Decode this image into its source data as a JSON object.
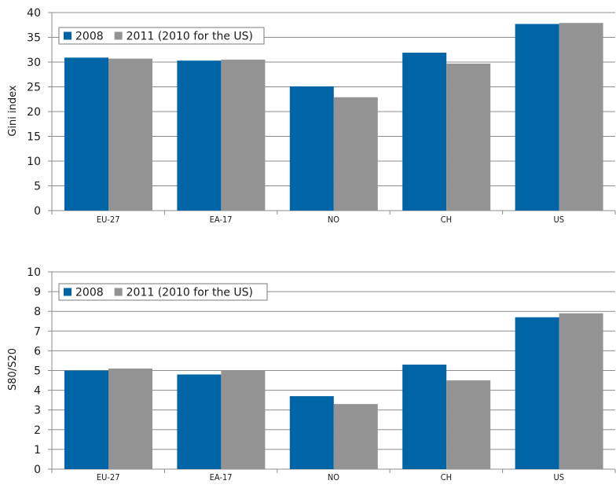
{
  "chart_data": [
    {
      "type": "bar",
      "ylabel": "Gini index",
      "ylim": [
        0,
        40
      ],
      "yticks": [
        "0",
        "5",
        "10",
        "15",
        "20",
        "25",
        "30",
        "35",
        "40"
      ],
      "categories": [
        "EU-27",
        "EA-17",
        "NO",
        "CH",
        "US"
      ],
      "series": [
        {
          "name": "2008",
          "color": "#0065a6",
          "values": [
            30.9,
            30.3,
            25.1,
            31.9,
            37.7
          ]
        },
        {
          "name": "2011 (2010 for the US)",
          "color": "#939393",
          "values": [
            30.7,
            30.5,
            22.9,
            29.7,
            37.9
          ]
        }
      ],
      "grid": true,
      "legend": "top-left"
    },
    {
      "type": "bar",
      "ylabel": "S80/S20",
      "ylim": [
        0,
        10
      ],
      "yticks": [
        "0",
        "1",
        "2",
        "3",
        "4",
        "5",
        "6",
        "7",
        "8",
        "9",
        "10"
      ],
      "categories": [
        "EU-27",
        "EA-17",
        "NO",
        "CH",
        "US"
      ],
      "series": [
        {
          "name": "2008",
          "color": "#0065a6",
          "values": [
            5.0,
            4.8,
            3.7,
            5.3,
            7.7
          ]
        },
        {
          "name": "2011 (2010 for the US)",
          "color": "#939393",
          "values": [
            5.1,
            5.0,
            3.3,
            4.5,
            7.9
          ]
        }
      ],
      "grid": true,
      "legend": "top-left"
    }
  ]
}
